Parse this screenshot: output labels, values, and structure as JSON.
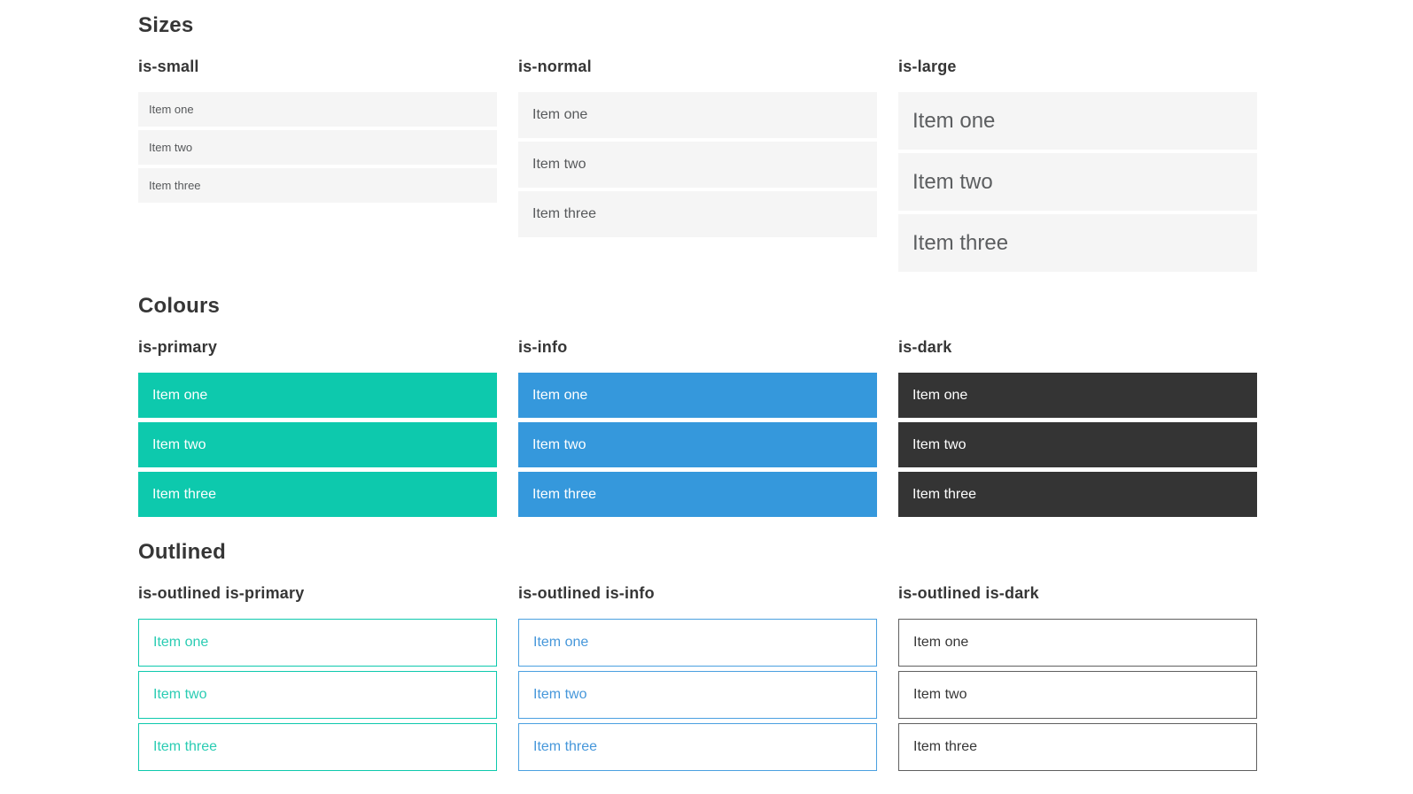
{
  "colors": {
    "heading": "#363636",
    "light_bg": "#f5f5f5",
    "light_text": "#57595b",
    "light_text_large": "#5c5e60",
    "primary": "#0dc9ad",
    "primary_text": "#2accb3",
    "info": "#3598dc",
    "info_border": "#4aa0e0",
    "info_text": "#4697da",
    "dark": "#343434",
    "dark_border": "#5f5f5f"
  },
  "sections": [
    {
      "title": "Sizes",
      "groups": [
        {
          "label": "is-small",
          "items": [
            "Item one",
            "Item two",
            "Item three"
          ]
        },
        {
          "label": "is-normal",
          "items": [
            "Item one",
            "Item two",
            "Item three"
          ]
        },
        {
          "label": "is-large",
          "items": [
            "Item one",
            "Item two",
            "Item three"
          ]
        }
      ]
    },
    {
      "title": "Colours",
      "groups": [
        {
          "label": "is-primary",
          "items": [
            "Item one",
            "Item two",
            "Item three"
          ]
        },
        {
          "label": "is-info",
          "items": [
            "Item one",
            "Item two",
            "Item three"
          ]
        },
        {
          "label": "is-dark",
          "items": [
            "Item one",
            "Item two",
            "Item three"
          ]
        }
      ]
    },
    {
      "title": "Outlined",
      "groups": [
        {
          "label": "is-outlined is-primary",
          "items": [
            "Item one",
            "Item two",
            "Item three"
          ]
        },
        {
          "label": "is-outlined is-info",
          "items": [
            "Item one",
            "Item two",
            "Item three"
          ]
        },
        {
          "label": "is-outlined is-dark",
          "items": [
            "Item one",
            "Item two",
            "Item three"
          ]
        }
      ]
    }
  ]
}
